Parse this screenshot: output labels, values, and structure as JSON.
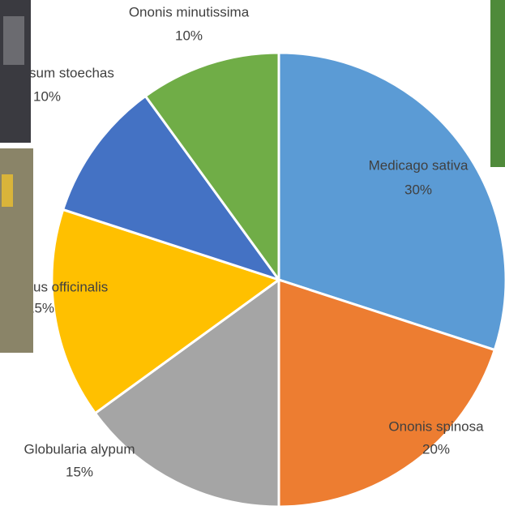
{
  "chart_data": {
    "type": "pie",
    "categories": [
      "Medicago sativa",
      "Ononis spinosa",
      "Globularia alypum",
      "us officinalis",
      "sum stoechas",
      "Ononis minutissima"
    ],
    "values": [
      30,
      20,
      15,
      15,
      10,
      10
    ],
    "value_labels": [
      "30%",
      "20%",
      "15%",
      "15%",
      "10%",
      "10%"
    ],
    "colors": [
      "#5b9bd5",
      "#ed7d31",
      "#a5a5a5",
      "#ffc000",
      "#4472c4",
      "#70ad47"
    ]
  }
}
